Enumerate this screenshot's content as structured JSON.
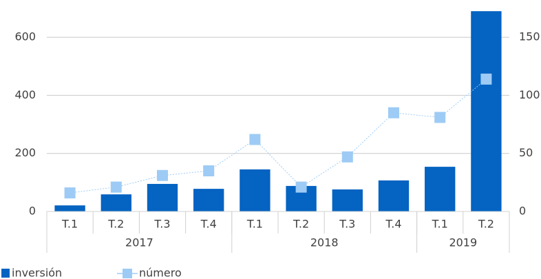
{
  "chart_data": {
    "type": "bar-line",
    "categories": [
      "T.1",
      "T.2",
      "T.3",
      "T.4",
      "T.1",
      "T.2",
      "T.3",
      "T.4",
      "T.1",
      "T.2"
    ],
    "groups": [
      {
        "name": "2017",
        "count": 4
      },
      {
        "name": "2018",
        "count": 4
      },
      {
        "name": "2019",
        "count": 2
      }
    ],
    "series": [
      {
        "name": "inversión",
        "type": "bar",
        "color": "#0563c1",
        "values": [
          21,
          59,
          95,
          78,
          145,
          88,
          76,
          107,
          154,
          690
        ]
      },
      {
        "name": "número",
        "type": "line",
        "axis": "y2",
        "color": "#9dcbf5",
        "values": [
          16,
          21,
          31,
          35,
          62,
          21,
          47,
          85,
          81,
          114
        ]
      }
    ],
    "ylim": [
      0,
      700
    ],
    "yticks": [
      0,
      200,
      400,
      600
    ],
    "y2lim": [
      0,
      175
    ],
    "y2ticks": [
      0,
      50,
      100,
      150
    ],
    "grid": true,
    "legend": "bottom-left"
  }
}
